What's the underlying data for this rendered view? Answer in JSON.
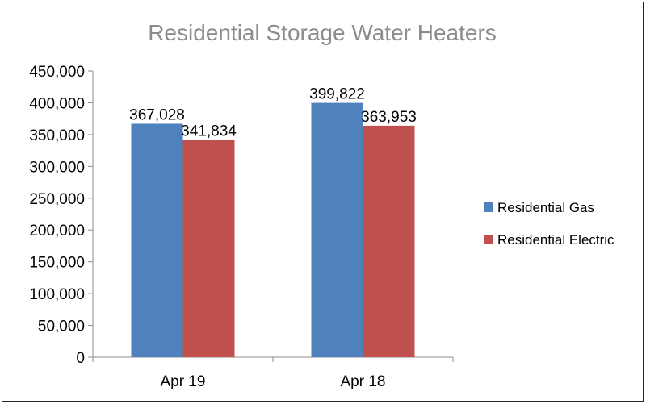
{
  "chart_data": {
    "type": "bar",
    "title": "Residential Storage Water Heaters",
    "categories": [
      "Apr 19",
      "Apr 18"
    ],
    "series": [
      {
        "name": "Residential Gas",
        "values": [
          367028,
          399822
        ],
        "color": "#4f81bd"
      },
      {
        "name": "Residential Electric",
        "values": [
          341834,
          363953
        ],
        "color": "#c0504d"
      }
    ],
    "data_labels": [
      [
        "367,028",
        "399,822"
      ],
      [
        "341,834",
        "363,953"
      ]
    ],
    "ylim": [
      0,
      450000
    ],
    "y_ticks": [
      0,
      50000,
      100000,
      150000,
      200000,
      250000,
      300000,
      350000,
      400000,
      450000
    ],
    "y_tick_labels": [
      "0",
      "50,000",
      "100,000",
      "150,000",
      "200,000",
      "250,000",
      "300,000",
      "350,000",
      "400,000",
      "450,000"
    ],
    "grid": false,
    "legend_position": "right"
  }
}
